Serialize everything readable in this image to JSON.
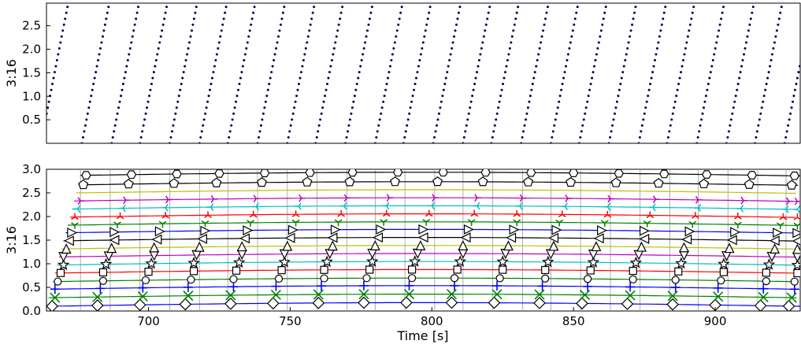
{
  "chart_data": [
    {
      "type": "scatter",
      "panel": "top",
      "title": "",
      "xlabel": "",
      "ylabel": "3:16",
      "xlim": [
        664,
        930
      ],
      "ylim": [
        0.0,
        2.98
      ],
      "yticks": [
        0.5,
        1.0,
        1.5,
        2.0,
        2.5
      ],
      "ytick_labels": [
        "0.5",
        "1.0",
        "1.5",
        "2.0",
        "2.5"
      ],
      "xticks_shown": false,
      "grid": false,
      "series": [
        {
          "marker": "dot",
          "color": "#000050",
          "description_values": "diagonal sweeps, each rising 0 to 2.9 over about 9.5 s",
          "sweep_start_times_s": [
            662,
            676.5,
            687,
            697,
            707.5,
            718,
            728,
            738.5,
            749,
            759,
            769.5,
            780,
            790,
            800.5,
            811,
            821,
            831.5,
            842,
            852,
            862.5,
            873,
            883,
            893.5,
            904,
            914,
            924.5
          ],
          "sweep_duration_s": 9.4,
          "y_range": [
            0.0,
            2.9
          ]
        }
      ]
    },
    {
      "type": "line",
      "panel": "bottom",
      "title": "",
      "xlabel": "Time [s]",
      "ylabel": "3:16",
      "xlim": [
        664,
        930
      ],
      "ylim": [
        0.0,
        3.0
      ],
      "xticks": [
        700,
        750,
        800,
        850,
        900
      ],
      "xtick_labels": [
        "700",
        "750",
        "800",
        "850",
        "900"
      ],
      "yticks": [
        0.0,
        0.5,
        1.0,
        1.5,
        2.0,
        2.5,
        3.0
      ],
      "ytick_labels": [
        "0.0",
        "0.5",
        "1.0",
        "1.5",
        "2.0",
        "2.5",
        "3.0"
      ],
      "grid": false,
      "vertical_lines_at_x": [
        676,
        686.5,
        697,
        707.5,
        718,
        728,
        738.5,
        749,
        759.5,
        770,
        780,
        790.5,
        801,
        811,
        821.5,
        832,
        842,
        852.5,
        863,
        873.5,
        884,
        894,
        904.5,
        915,
        925
      ],
      "series": [
        {
          "level": 0.1,
          "color": "#0000ff",
          "marker": "diamond",
          "marker_x": [
            666,
            682,
            697,
            713,
            729,
            744,
            760,
            776,
            791,
            807,
            822,
            838,
            853,
            869,
            885,
            900,
            916,
            926
          ]
        },
        {
          "level": 0.28,
          "color": "#008000",
          "marker": "x",
          "marker_x": [
            667,
            682,
            698,
            714,
            729,
            745,
            760,
            776,
            792,
            807,
            823,
            838,
            854,
            870,
            885,
            901,
            917,
            927
          ]
        },
        {
          "level": 0.46,
          "color": "#0000ff",
          "marker": "plus",
          "marker_x": [
            667,
            683,
            698,
            714,
            730,
            745,
            761,
            776,
            792,
            808,
            823,
            839,
            855,
            870,
            886,
            901,
            917,
            928
          ]
        },
        {
          "level": 0.62,
          "color": "#008000",
          "marker": "circle",
          "marker_x": [
            668,
            684,
            699,
            715,
            730,
            746,
            762,
            777,
            793,
            808,
            824,
            840,
            855,
            871,
            886,
            902,
            918,
            928
          ]
        },
        {
          "level": 0.8,
          "color": "#ff0000",
          "marker": "square",
          "marker_x": [
            669,
            684,
            700,
            716,
            731,
            747,
            762,
            778,
            793,
            809,
            825,
            840,
            856,
            871,
            887,
            903,
            918,
            929
          ]
        },
        {
          "level": 0.97,
          "color": "#00bfbf",
          "marker": "star",
          "marker_x": [
            670,
            685,
            701,
            716,
            732,
            748,
            763,
            779,
            794,
            810,
            825,
            841,
            857,
            872,
            888,
            903,
            919,
            929
          ]
        },
        {
          "level": 1.14,
          "color": "#bf00bf",
          "marker": "triangle_down",
          "marker_x": [
            670,
            686,
            702,
            717,
            733,
            748,
            764,
            779,
            795,
            811,
            826,
            842,
            857,
            873,
            889,
            904,
            920,
            929
          ]
        },
        {
          "level": 1.31,
          "color": "#bfbf00",
          "marker": "triangle_up",
          "marker_x": [
            671,
            687,
            702,
            718,
            733,
            749,
            765,
            780,
            796,
            811,
            827,
            843,
            858,
            874,
            889,
            905,
            921,
            929
          ]
        },
        {
          "level": 1.48,
          "color": "#000000",
          "marker": "triangle_left",
          "marker_x": [
            672,
            688,
            703,
            719,
            734,
            750,
            765,
            781,
            797,
            812,
            828,
            843,
            859,
            875,
            890,
            906,
            921,
            929
          ]
        },
        {
          "level": 1.65,
          "color": "#0000ff",
          "marker": "triangle_right",
          "marker_x": [
            673,
            688,
            704,
            720,
            735,
            751,
            766,
            782,
            797,
            813,
            829,
            844,
            860,
            875,
            891,
            907,
            922,
            929
          ]
        },
        {
          "level": 1.81,
          "color": "#008000",
          "marker": "tri_down",
          "marker_x": [
            674,
            689,
            705,
            720,
            736,
            752,
            767,
            783,
            798,
            814,
            830,
            845,
            861,
            876,
            892,
            908,
            923,
            929
          ]
        },
        {
          "level": 1.98,
          "color": "#ff0000",
          "marker": "tri_up",
          "marker_x": [
            674,
            690,
            706,
            721,
            737,
            752,
            768,
            784,
            799,
            815,
            830,
            846,
            862,
            877,
            893,
            908,
            924,
            929
          ]
        },
        {
          "level": 2.15,
          "color": "#00bfbf",
          "marker": "tri_left",
          "marker_x": [
            675,
            691,
            706,
            722,
            738,
            753,
            769,
            784,
            800,
            816,
            831,
            847,
            862,
            878,
            894,
            909,
            925,
            929
          ]
        },
        {
          "level": 2.32,
          "color": "#bf00bf",
          "marker": "tri_right",
          "marker_x": [
            676,
            692,
            707,
            723,
            738,
            754,
            770,
            785,
            801,
            816,
            832,
            848,
            863,
            879,
            894,
            910,
            926,
            929
          ]
        },
        {
          "level": 2.49,
          "color": "#bfbf00",
          "marker": "none",
          "marker_x": []
        },
        {
          "level": 2.66,
          "color": "#000000",
          "marker": "pentagon",
          "marker_x": [
            677,
            693,
            709,
            724,
            740,
            756,
            771,
            787,
            802,
            818,
            834,
            849,
            865,
            880,
            896,
            912,
            927
          ]
        },
        {
          "level": 2.86,
          "color": "#000000",
          "marker": "hexagon",
          "marker_x": [
            678,
            694,
            710,
            725,
            741,
            757,
            772,
            788,
            804,
            819,
            835,
            850,
            866,
            882,
            897,
            913,
            928
          ]
        }
      ]
    }
  ]
}
